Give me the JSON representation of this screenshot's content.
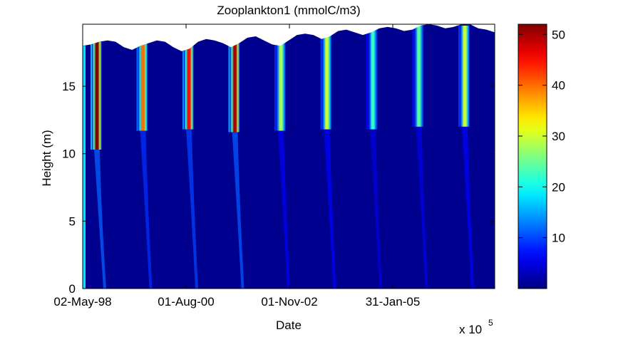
{
  "chart_data": {
    "type": "heatmap",
    "title": "Zooplankton1 (mmolC/m3)",
    "xlabel": "Date",
    "ylabel": "Height (m)",
    "x_ticks": [
      "02-May-98",
      "01-Aug-00",
      "01-Nov-02",
      "31-Jan-05"
    ],
    "x_exponent_label": "x 10",
    "x_exponent_power": "5",
    "y_ticks": [
      "0",
      "5",
      "10",
      "15"
    ],
    "ylim": [
      0,
      19.6
    ],
    "colorbar": {
      "colormap": "jet",
      "range": [
        0,
        52
      ],
      "ticks": [
        "10",
        "20",
        "30",
        "40",
        "50"
      ]
    },
    "background_value_color": "#00008f",
    "blooms": [
      {
        "date": "mid 1998",
        "peak_value": 52,
        "top_height": 18.3,
        "base_height": 10.3
      },
      {
        "date": "mid 1999",
        "peak_value": 40,
        "top_height": 18.4,
        "base_height": 11.7
      },
      {
        "date": "mid 2000",
        "peak_value": 45,
        "top_height": 18.4,
        "base_height": 11.8
      },
      {
        "date": "mid 2001",
        "peak_value": 50,
        "top_height": 18.3,
        "base_height": 11.6
      },
      {
        "date": "mid 2002",
        "peak_value": 28,
        "top_height": 18.8,
        "base_height": 11.7
      },
      {
        "date": "mid 2003",
        "peak_value": 30,
        "top_height": 19.1,
        "base_height": 11.8
      },
      {
        "date": "mid 2004",
        "peak_value": 22,
        "top_height": 19.3,
        "base_height": 11.8
      },
      {
        "date": "mid 2005",
        "peak_value": 24,
        "top_height": 19.5,
        "base_height": 12.0
      },
      {
        "date": "mid 2006",
        "peak_value": 30,
        "top_height": 19.5,
        "base_height": 12.0
      }
    ],
    "surface_profile": [
      18.0,
      18.1,
      18.3,
      18.4,
      18.3,
      17.9,
      17.7,
      18.0,
      18.2,
      18.4,
      18.3,
      17.9,
      17.6,
      17.8,
      18.3,
      18.5,
      18.4,
      18.2,
      17.9,
      18.2,
      18.6,
      18.7,
      18.4,
      18.1,
      18.0,
      18.4,
      18.8,
      18.9,
      18.8,
      18.5,
      18.7,
      19.1,
      19.2,
      19.0,
      18.8,
      19.0,
      19.3,
      19.4,
      19.3,
      19.1,
      19.2,
      19.5,
      19.6,
      19.5,
      19.3,
      19.4,
      19.6,
      19.6,
      19.3,
      19.2,
      19.0
    ]
  }
}
